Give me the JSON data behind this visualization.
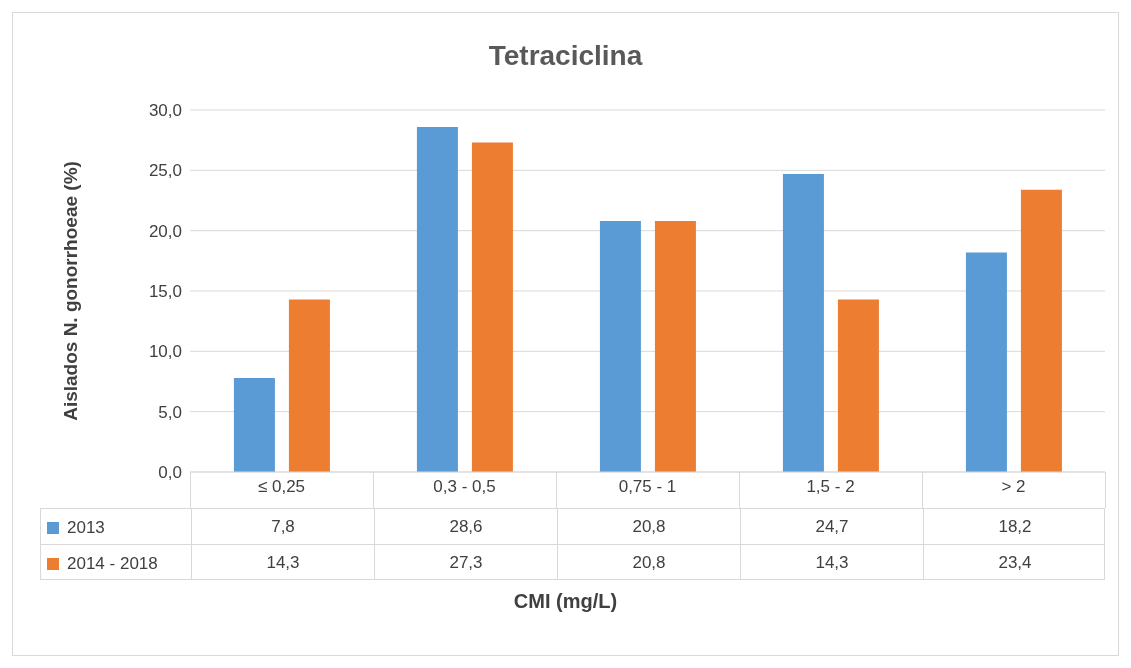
{
  "chart_data": {
    "type": "bar",
    "title": "Tetraciclina",
    "xlabel": "CMI (mg/L)",
    "ylabel": "Aislados N. gonorrhoeae (%)",
    "categories": [
      "≤ 0,25",
      "0,3 - 0,5",
      "0,75 - 1",
      "1,5 - 2",
      "> 2"
    ],
    "series": [
      {
        "name": "2013",
        "color": "#5b9bd5",
        "values": [
          7.8,
          28.6,
          20.8,
          24.7,
          18.2
        ],
        "value_labels": [
          "7,8",
          "28,6",
          "20,8",
          "24,7",
          "18,2"
        ]
      },
      {
        "name": "2014 - 2018",
        "color": "#ed7d31",
        "values": [
          14.3,
          27.3,
          20.8,
          14.3,
          23.4
        ],
        "value_labels": [
          "14,3",
          "27,3",
          "20,8",
          "14,3",
          "23,4"
        ]
      }
    ],
    "ylim": [
      0,
      30
    ],
    "yticks": [
      {
        "value": 0,
        "label": "0,0"
      },
      {
        "value": 5,
        "label": "5,0"
      },
      {
        "value": 10,
        "label": "10,0"
      },
      {
        "value": 15,
        "label": "15,0"
      },
      {
        "value": 20,
        "label": "20,0"
      },
      {
        "value": 25,
        "label": "25,0"
      },
      {
        "value": 30,
        "label": "30,0"
      }
    ],
    "grid": "y",
    "legend": "bottom"
  }
}
